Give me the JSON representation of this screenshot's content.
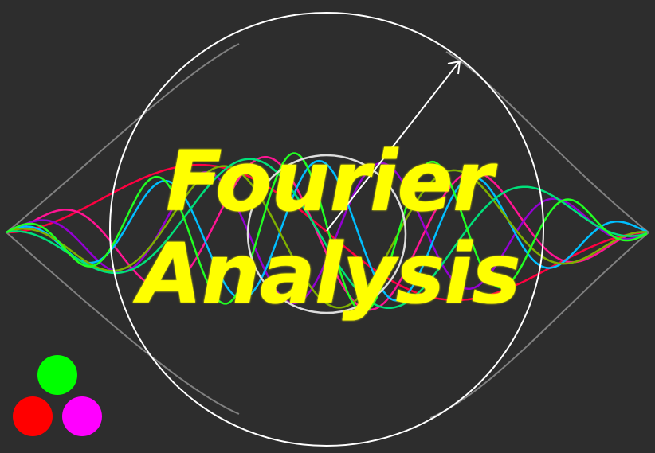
{
  "title": {
    "line1": "Fourier",
    "line2": "Analysis"
  },
  "colors": {
    "background": "#2d2d2d",
    "title": "#ffff00",
    "circle": "#ffffff",
    "envelope": "#808080",
    "waves": [
      "#ff0040",
      "#ff1493",
      "#9400d3",
      "#00bfff",
      "#7fb000",
      "#00e07a",
      "#22ff22"
    ],
    "logo_dots": [
      "#00ff00",
      "#ff0000",
      "#ff00ff"
    ]
  },
  "logo": {
    "dots": [
      "green-dot",
      "red-dot",
      "magenta-dot"
    ]
  }
}
